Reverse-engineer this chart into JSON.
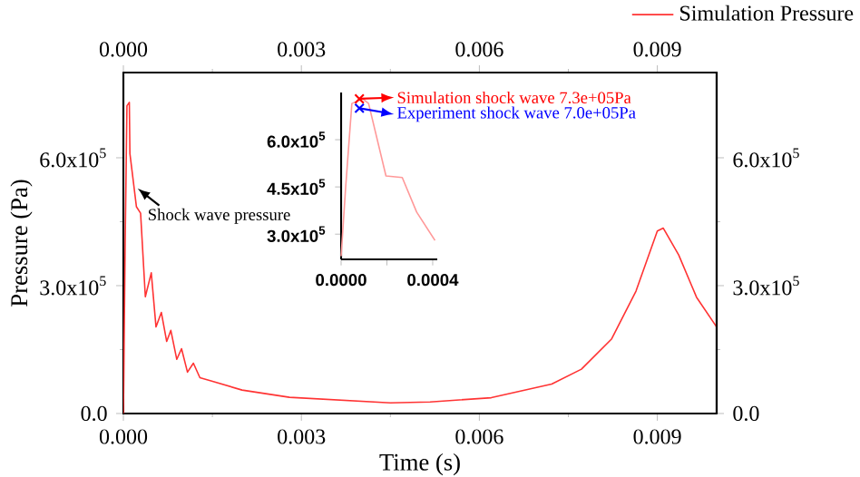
{
  "chart_data": [
    {
      "type": "line",
      "xlabel": "Time (s)",
      "ylabel": "Pressure (Pa)",
      "xlim": [
        0,
        0.01
      ],
      "ylim": [
        0,
        800000
      ],
      "xticks": [
        {
          "value": 0,
          "label": "0.000"
        },
        {
          "value": 0.003,
          "label": "0.003"
        },
        {
          "value": 0.006,
          "label": "0.006"
        },
        {
          "value": 0.009,
          "label": "0.009"
        }
      ],
      "yticks": [
        {
          "value": 0,
          "label": "0.0"
        },
        {
          "value": 300000,
          "label": "3.0x10$^{5}$"
        },
        {
          "value": 600000,
          "label": "6.0x10$^{5}$"
        }
      ],
      "x2lim": [
        0,
        0.01
      ],
      "x2ticks": [
        {
          "value": 0,
          "label": "0.000"
        },
        {
          "value": 0.003,
          "label": "0.003"
        },
        {
          "value": 0.006,
          "label": "0.006"
        },
        {
          "value": 0.009,
          "label": "0.009"
        }
      ],
      "y2lim": [
        0,
        800000
      ],
      "y2ticks": [
        {
          "value": 0,
          "label": "0.0"
        },
        {
          "value": 300000,
          "label": "3.0x10$^{5}$"
        },
        {
          "value": 600000,
          "label": "6.0x10$^{5}$"
        }
      ],
      "legend": "top right",
      "annotations": [
        {
          "text": "Shock wave pressure",
          "x": 0.00024,
          "y": 528000
        }
      ],
      "series": [
        {
          "name": "Simulation Pressure",
          "color": "#ff3333",
          "x": [
            0,
            3e-05,
            6e-05,
            0.0001,
            0.00011,
            0.00022,
            0.00029,
            0.00037,
            0.00047,
            0.00055,
            0.00064,
            0.00073,
            0.0008,
            0.0009,
            0.00098,
            0.00108,
            0.00118,
            0.00129,
            0.00149,
            0.002,
            0.0028,
            0.0045,
            0.00517,
            0.0062,
            0.00722,
            0.00772,
            0.00823,
            0.00864,
            0.009,
            0.0091,
            0.00936,
            0.00966,
            0.01
          ],
          "values": [
            0,
            400000,
            722000,
            730000,
            610000,
            485000,
            470000,
            274000,
            330000,
            203000,
            237000,
            169000,
            195000,
            127000,
            152000,
            97000,
            118000,
            84000,
            76000,
            55000,
            38000,
            25000,
            27000,
            37000,
            69000,
            104000,
            175000,
            287000,
            428000,
            435000,
            372000,
            273000,
            203000
          ]
        }
      ]
    },
    {
      "type": "line",
      "xlim": [
        0,
        0.00042
      ],
      "ylim": [
        220000,
        750000
      ],
      "legend": "top right",
      "xticks": [
        {
          "value": 0,
          "label": "0.0000"
        },
        {
          "value": 0.0002,
          "label": null
        },
        {
          "value": 0.0004,
          "label": "0.0004"
        }
      ],
      "yticks": [
        {
          "value": 300000,
          "label": "3.0x10$^{5}$"
        },
        {
          "value": 450000,
          "label": "4.5x10$^{5}$"
        },
        {
          "value": 600000,
          "label": "6.0x10$^{5}$"
        }
      ],
      "series": [
        {
          "color": "#ff9999",
          "x": [
            0,
            2e-05,
            4.7e-05,
            9.4e-05,
            0.00012,
            0.000196,
            0.000267,
            0.00033,
            0.00041
          ],
          "values": [
            230000,
            450000,
            715000,
            730000,
            715000,
            485000,
            480000,
            370000,
            280000
          ]
        },
        {
          "type": "scatter",
          "name": "Simulation shock wave  7.3e+05Pa",
          "color": "#ff0000",
          "marker": "cross",
          "x": [
            8e-05
          ],
          "values": [
            730000
          ]
        },
        {
          "type": "scatter",
          "name": "Experiment shock wave 7.0e+05Pa",
          "color": "#0000ff",
          "marker": "cross",
          "x": [
            8e-05
          ],
          "values": [
            700000
          ]
        }
      ]
    }
  ]
}
